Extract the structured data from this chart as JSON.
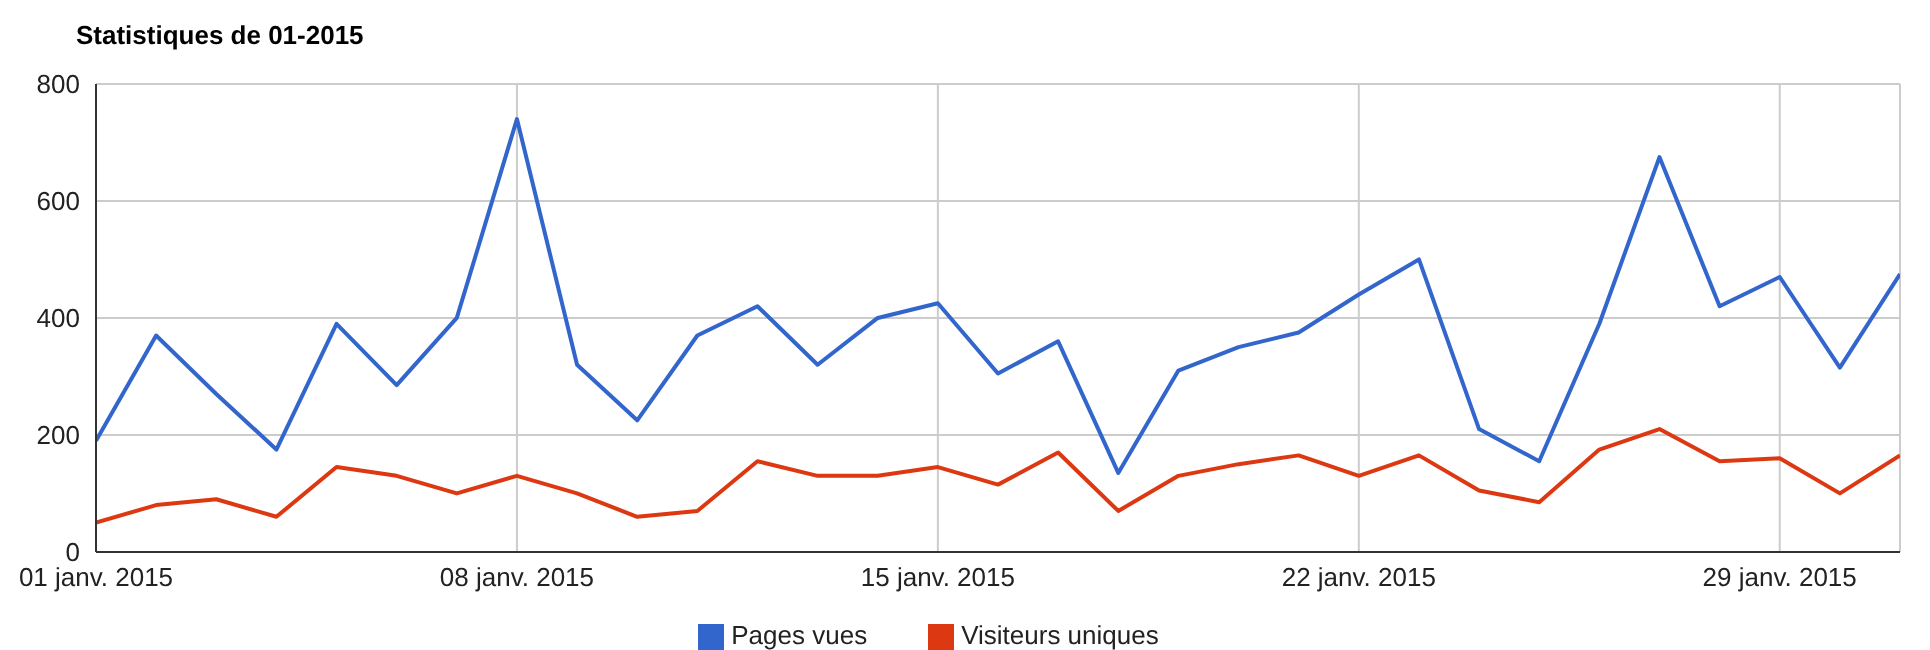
{
  "chart_data": {
    "type": "line",
    "title": "Statistiques de 01-2015",
    "x": [
      "2015-01-01",
      "2015-01-02",
      "2015-01-03",
      "2015-01-04",
      "2015-01-05",
      "2015-01-06",
      "2015-01-07",
      "2015-01-08",
      "2015-01-09",
      "2015-01-10",
      "2015-01-11",
      "2015-01-12",
      "2015-01-13",
      "2015-01-14",
      "2015-01-15",
      "2015-01-16",
      "2015-01-17",
      "2015-01-18",
      "2015-01-19",
      "2015-01-20",
      "2015-01-21",
      "2015-01-22",
      "2015-01-23",
      "2015-01-24",
      "2015-01-25",
      "2015-01-26",
      "2015-01-27",
      "2015-01-28",
      "2015-01-29",
      "2015-01-30",
      "2015-01-31"
    ],
    "series": [
      {
        "name": "Pages vues",
        "color": "#3366cc",
        "values": [
          190,
          370,
          270,
          175,
          390,
          285,
          400,
          740,
          320,
          225,
          370,
          420,
          320,
          400,
          425,
          305,
          360,
          135,
          310,
          350,
          375,
          440,
          500,
          210,
          155,
          390,
          675,
          420,
          470,
          315,
          475
        ]
      },
      {
        "name": "Visiteurs uniques",
        "color": "#dc3912",
        "values": [
          50,
          80,
          90,
          60,
          145,
          130,
          100,
          130,
          100,
          60,
          70,
          155,
          130,
          130,
          145,
          115,
          170,
          70,
          130,
          150,
          165,
          130,
          165,
          105,
          85,
          175,
          210,
          155,
          160,
          100,
          165
        ]
      }
    ],
    "xlim": [
      "2015-01-01",
      "2015-01-31"
    ],
    "xticks": [
      {
        "value": "2015-01-01",
        "label": "01 janv. 2015"
      },
      {
        "value": "2015-01-08",
        "label": "08 janv. 2015"
      },
      {
        "value": "2015-01-15",
        "label": "15 janv. 2015"
      },
      {
        "value": "2015-01-22",
        "label": "22 janv. 2015"
      },
      {
        "value": "2015-01-29",
        "label": "29 janv. 2015"
      }
    ],
    "ylim": [
      0,
      800
    ],
    "yticks": [
      0,
      200,
      400,
      600,
      800
    ],
    "grid": true,
    "legend": "bottom",
    "marker": "none",
    "line_style": "solid"
  }
}
